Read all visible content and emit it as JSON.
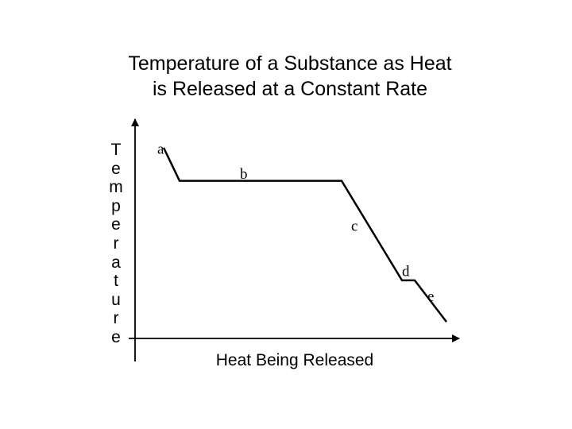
{
  "chart_data": {
    "type": "line",
    "title_line1": "Temperature of a Substance as Heat",
    "title_line2": "is Released at a Constant Rate",
    "xlabel": "Heat Being Released",
    "ylabel": "Temperature",
    "axis_ticks": false,
    "grid": false,
    "series": [
      {
        "x": [
          0.09,
          0.14,
          0.65,
          0.84,
          0.88,
          0.98
        ],
        "y": [
          0.92,
          0.76,
          0.76,
          0.28,
          0.28,
          0.08
        ]
      }
    ],
    "point_labels": [
      {
        "text": "a",
        "x": 0.07,
        "y": 0.89
      },
      {
        "text": "b",
        "x": 0.33,
        "y": 0.77
      },
      {
        "text": "c",
        "x": 0.68,
        "y": 0.52
      },
      {
        "text": "d",
        "x": 0.84,
        "y": 0.3
      },
      {
        "text": "e",
        "x": 0.92,
        "y": 0.18
      }
    ],
    "xlim": [
      0,
      1
    ],
    "ylim": [
      0,
      1
    ]
  }
}
